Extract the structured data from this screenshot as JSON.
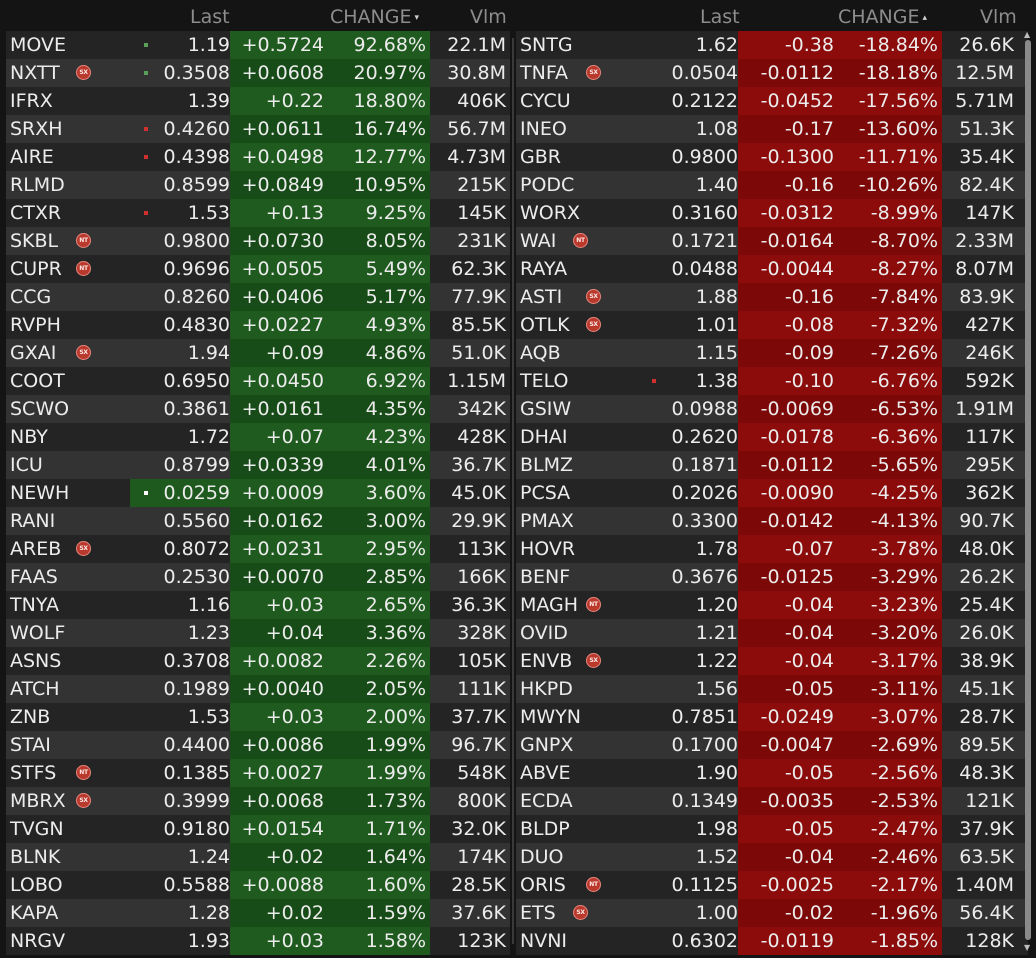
{
  "headers": {
    "last": "Last",
    "change": "CHANGE",
    "vlm": "Vlm",
    "gain_sort": "▾",
    "loss_sort": "▴"
  },
  "colors": {
    "gainer_bg": "#1e5a1e",
    "gainer_bg_alt": "#164a16",
    "loser_bg": "#8a0c0c",
    "loser_bg_alt": "#7a0808",
    "badge": "#b9392c"
  },
  "gainers": [
    {
      "symbol": "MOVE",
      "badge": "",
      "dot": "#5aa05a",
      "last": "1.19",
      "change": "+0.5724",
      "pct": "92.68%",
      "vol": "22.1M"
    },
    {
      "symbol": "NXTT",
      "badge": "SX",
      "dot": "#5aa05a",
      "last": "0.3508",
      "change": "+0.0608",
      "pct": "20.97%",
      "vol": "30.8M"
    },
    {
      "symbol": "IFRX",
      "badge": "",
      "dot": "",
      "last": "1.39",
      "change": "+0.22",
      "pct": "18.80%",
      "vol": "406K"
    },
    {
      "symbol": "SRXH",
      "badge": "",
      "dot": "#d03030",
      "last": "0.4260",
      "change": "+0.0611",
      "pct": "16.74%",
      "vol": "56.7M"
    },
    {
      "symbol": "AIRE",
      "badge": "",
      "dot": "#d03030",
      "last": "0.4398",
      "change": "+0.0498",
      "pct": "12.77%",
      "vol": "4.73M"
    },
    {
      "symbol": "RLMD",
      "badge": "",
      "dot": "",
      "last": "0.8599",
      "change": "+0.0849",
      "pct": "10.95%",
      "vol": "215K"
    },
    {
      "symbol": "CTXR",
      "badge": "",
      "dot": "#d03030",
      "last": "1.53",
      "change": "+0.13",
      "pct": "9.25%",
      "vol": "145K"
    },
    {
      "symbol": "SKBL",
      "badge": "NT",
      "dot": "",
      "last": "0.9800",
      "change": "+0.0730",
      "pct": "8.05%",
      "vol": "231K"
    },
    {
      "symbol": "CUPR",
      "badge": "NT",
      "dot": "",
      "last": "0.9696",
      "change": "+0.0505",
      "pct": "5.49%",
      "vol": "62.3K"
    },
    {
      "symbol": "CCG",
      "badge": "",
      "dot": "",
      "last": "0.8260",
      "change": "+0.0406",
      "pct": "5.17%",
      "vol": "77.9K"
    },
    {
      "symbol": "RVPH",
      "badge": "",
      "dot": "",
      "last": "0.4830",
      "change": "+0.0227",
      "pct": "4.93%",
      "vol": "85.5K"
    },
    {
      "symbol": "GXAI",
      "badge": "SX",
      "dot": "",
      "last": "1.94",
      "change": "+0.09",
      "pct": "4.86%",
      "vol": "51.0K"
    },
    {
      "symbol": "COOT",
      "badge": "",
      "dot": "",
      "last": "0.6950",
      "change": "+0.0450",
      "pct": "6.92%",
      "vol": "1.15M"
    },
    {
      "symbol": "SCWO",
      "badge": "",
      "dot": "",
      "last": "0.3861",
      "change": "+0.0161",
      "pct": "4.35%",
      "vol": "342K"
    },
    {
      "symbol": "NBY",
      "badge": "",
      "dot": "",
      "last": "1.72",
      "change": "+0.07",
      "pct": "4.23%",
      "vol": "428K"
    },
    {
      "symbol": "ICU",
      "badge": "",
      "dot": "",
      "last": "0.8799",
      "change": "+0.0339",
      "pct": "4.01%",
      "vol": "36.7K"
    },
    {
      "symbol": "NEWH",
      "badge": "",
      "dot": "#ffffff",
      "hl": true,
      "last": "0.0259",
      "change": "+0.0009",
      "pct": "3.60%",
      "vol": "45.0K"
    },
    {
      "symbol": "RANI",
      "badge": "",
      "dot": "",
      "last": "0.5560",
      "change": "+0.0162",
      "pct": "3.00%",
      "vol": "29.9K"
    },
    {
      "symbol": "AREB",
      "badge": "SX",
      "dot": "",
      "last": "0.8072",
      "change": "+0.0231",
      "pct": "2.95%",
      "vol": "113K"
    },
    {
      "symbol": "FAAS",
      "badge": "",
      "dot": "",
      "last": "0.2530",
      "change": "+0.0070",
      "pct": "2.85%",
      "vol": "166K"
    },
    {
      "symbol": "TNYA",
      "badge": "",
      "dot": "",
      "last": "1.16",
      "change": "+0.03",
      "pct": "2.65%",
      "vol": "36.3K"
    },
    {
      "symbol": "WOLF",
      "badge": "",
      "dot": "",
      "last": "1.23",
      "change": "+0.04",
      "pct": "3.36%",
      "vol": "328K"
    },
    {
      "symbol": "ASNS",
      "badge": "",
      "dot": "",
      "last": "0.3708",
      "change": "+0.0082",
      "pct": "2.26%",
      "vol": "105K"
    },
    {
      "symbol": "ATCH",
      "badge": "",
      "dot": "",
      "last": "0.1989",
      "change": "+0.0040",
      "pct": "2.05%",
      "vol": "111K"
    },
    {
      "symbol": "ZNB",
      "badge": "",
      "dot": "",
      "last": "1.53",
      "change": "+0.03",
      "pct": "2.00%",
      "vol": "37.7K"
    },
    {
      "symbol": "STAI",
      "badge": "",
      "dot": "",
      "last": "0.4400",
      "change": "+0.0086",
      "pct": "1.99%",
      "vol": "96.7K"
    },
    {
      "symbol": "STFS",
      "badge": "NT",
      "dot": "",
      "last": "0.1385",
      "change": "+0.0027",
      "pct": "1.99%",
      "vol": "548K"
    },
    {
      "symbol": "MBRX",
      "badge": "SX",
      "dot": "",
      "last": "0.3999",
      "change": "+0.0068",
      "pct": "1.73%",
      "vol": "800K"
    },
    {
      "symbol": "TVGN",
      "badge": "",
      "dot": "",
      "last": "0.9180",
      "change": "+0.0154",
      "pct": "1.71%",
      "vol": "32.0K"
    },
    {
      "symbol": "BLNK",
      "badge": "",
      "dot": "",
      "last": "1.24",
      "change": "+0.02",
      "pct": "1.64%",
      "vol": "174K"
    },
    {
      "symbol": "LOBO",
      "badge": "",
      "dot": "",
      "last": "0.5588",
      "change": "+0.0088",
      "pct": "1.60%",
      "vol": "28.5K"
    },
    {
      "symbol": "KAPA",
      "badge": "",
      "dot": "",
      "last": "1.28",
      "change": "+0.02",
      "pct": "1.59%",
      "vol": "37.6K"
    },
    {
      "symbol": "NRGV",
      "badge": "",
      "dot": "",
      "last": "1.93",
      "change": "+0.03",
      "pct": "1.58%",
      "vol": "123K"
    }
  ],
  "losers": [
    {
      "symbol": "SNTG",
      "badge": "",
      "dot": "",
      "last": "1.62",
      "change": "-0.38",
      "pct": "-18.84%",
      "vol": "26.6K"
    },
    {
      "symbol": "TNFA",
      "badge": "SX",
      "dot": "",
      "last": "0.0504",
      "change": "-0.0112",
      "pct": "-18.18%",
      "vol": "12.5M"
    },
    {
      "symbol": "CYCU",
      "badge": "",
      "dot": "",
      "last": "0.2122",
      "change": "-0.0452",
      "pct": "-17.56%",
      "vol": "5.71M"
    },
    {
      "symbol": "INEO",
      "badge": "",
      "dot": "",
      "last": "1.08",
      "change": "-0.17",
      "pct": "-13.60%",
      "vol": "51.3K"
    },
    {
      "symbol": "GBR",
      "badge": "",
      "dot": "",
      "last": "0.9800",
      "change": "-0.1300",
      "pct": "-11.71%",
      "vol": "35.4K"
    },
    {
      "symbol": "PODC",
      "badge": "",
      "dot": "",
      "last": "1.40",
      "change": "-0.16",
      "pct": "-10.26%",
      "vol": "82.4K"
    },
    {
      "symbol": "WORX",
      "badge": "",
      "dot": "",
      "last": "0.3160",
      "change": "-0.0312",
      "pct": "-8.99%",
      "vol": "147K"
    },
    {
      "symbol": "WAI",
      "badge": "NT",
      "dot": "",
      "last": "0.1721",
      "change": "-0.0164",
      "pct": "-8.70%",
      "vol": "2.33M"
    },
    {
      "symbol": "RAYA",
      "badge": "",
      "dot": "",
      "last": "0.0488",
      "change": "-0.0044",
      "pct": "-8.27%",
      "vol": "8.07M"
    },
    {
      "symbol": "ASTI",
      "badge": "SX",
      "dot": "",
      "last": "1.88",
      "change": "-0.16",
      "pct": "-7.84%",
      "vol": "83.9K"
    },
    {
      "symbol": "OTLK",
      "badge": "SX",
      "dot": "",
      "last": "1.01",
      "change": "-0.08",
      "pct": "-7.32%",
      "vol": "427K"
    },
    {
      "symbol": "AQB",
      "badge": "",
      "dot": "",
      "last": "1.15",
      "change": "-0.09",
      "pct": "-7.26%",
      "vol": "246K"
    },
    {
      "symbol": "TELO",
      "badge": "",
      "dot": "#d03030",
      "last": "1.38",
      "change": "-0.10",
      "pct": "-6.76%",
      "vol": "592K"
    },
    {
      "symbol": "GSIW",
      "badge": "",
      "dot": "",
      "last": "0.0988",
      "change": "-0.0069",
      "pct": "-6.53%",
      "vol": "1.91M"
    },
    {
      "symbol": "DHAI",
      "badge": "",
      "dot": "",
      "last": "0.2620",
      "change": "-0.0178",
      "pct": "-6.36%",
      "vol": "117K"
    },
    {
      "symbol": "BLMZ",
      "badge": "",
      "dot": "",
      "last": "0.1871",
      "change": "-0.0112",
      "pct": "-5.65%",
      "vol": "295K"
    },
    {
      "symbol": "PCSA",
      "badge": "",
      "dot": "",
      "last": "0.2026",
      "change": "-0.0090",
      "pct": "-4.25%",
      "vol": "362K"
    },
    {
      "symbol": "PMAX",
      "badge": "",
      "dot": "",
      "last": "0.3300",
      "change": "-0.0142",
      "pct": "-4.13%",
      "vol": "90.7K"
    },
    {
      "symbol": "HOVR",
      "badge": "",
      "dot": "",
      "last": "1.78",
      "change": "-0.07",
      "pct": "-3.78%",
      "vol": "48.0K"
    },
    {
      "symbol": "BENF",
      "badge": "",
      "dot": "",
      "last": "0.3676",
      "change": "-0.0125",
      "pct": "-3.29%",
      "vol": "26.2K"
    },
    {
      "symbol": "MAGH",
      "badge": "NT",
      "dot": "",
      "last": "1.20",
      "change": "-0.04",
      "pct": "-3.23%",
      "vol": "25.4K"
    },
    {
      "symbol": "OVID",
      "badge": "",
      "dot": "",
      "last": "1.21",
      "change": "-0.04",
      "pct": "-3.20%",
      "vol": "26.0K"
    },
    {
      "symbol": "ENVB",
      "badge": "SX",
      "dot": "",
      "last": "1.22",
      "change": "-0.04",
      "pct": "-3.17%",
      "vol": "38.9K"
    },
    {
      "symbol": "HKPD",
      "badge": "",
      "dot": "",
      "last": "1.56",
      "change": "-0.05",
      "pct": "-3.11%",
      "vol": "45.1K"
    },
    {
      "symbol": "MWYN",
      "badge": "",
      "dot": "",
      "last": "0.7851",
      "change": "-0.0249",
      "pct": "-3.07%",
      "vol": "28.7K"
    },
    {
      "symbol": "GNPX",
      "badge": "",
      "dot": "",
      "last": "0.1700",
      "change": "-0.0047",
      "pct": "-2.69%",
      "vol": "89.5K"
    },
    {
      "symbol": "ABVE",
      "badge": "",
      "dot": "",
      "last": "1.90",
      "change": "-0.05",
      "pct": "-2.56%",
      "vol": "48.3K"
    },
    {
      "symbol": "ECDA",
      "badge": "",
      "dot": "",
      "last": "0.1349",
      "change": "-0.0035",
      "pct": "-2.53%",
      "vol": "121K"
    },
    {
      "symbol": "BLDP",
      "badge": "",
      "dot": "",
      "last": "1.98",
      "change": "-0.05",
      "pct": "-2.47%",
      "vol": "37.9K"
    },
    {
      "symbol": "DUO",
      "badge": "",
      "dot": "",
      "last": "1.52",
      "change": "-0.04",
      "pct": "-2.46%",
      "vol": "63.5K"
    },
    {
      "symbol": "ORIS",
      "badge": "NT",
      "dot": "",
      "last": "0.1125",
      "change": "-0.0025",
      "pct": "-2.17%",
      "vol": "1.40M"
    },
    {
      "symbol": "ETS",
      "badge": "SX",
      "dot": "",
      "last": "1.00",
      "change": "-0.02",
      "pct": "-1.96%",
      "vol": "56.4K"
    },
    {
      "symbol": "NVNI",
      "badge": "",
      "dot": "",
      "last": "0.6302",
      "change": "-0.0119",
      "pct": "-1.85%",
      "vol": "128K"
    }
  ]
}
